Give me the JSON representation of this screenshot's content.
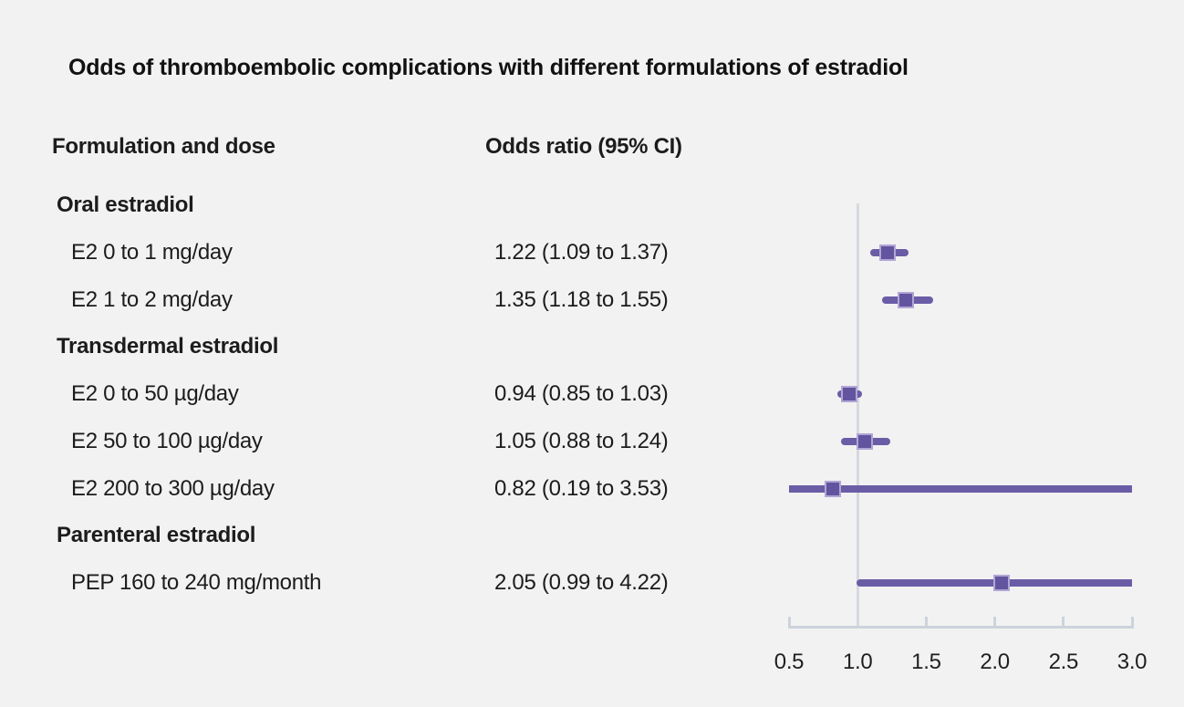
{
  "title": "Odds of thromboembolic complications with different formulations of estradiol",
  "columns": {
    "formulation": "Formulation and dose",
    "odds_ratio": "Odds ratio (95% CI)"
  },
  "chart_data": {
    "type": "forest",
    "title": "Odds of thromboembolic complications with different formulations of estradiol",
    "xlabel": "Odds ratio (95% CI)",
    "xlim": [
      0.5,
      3.0
    ],
    "grid": false,
    "reference_line": 1.0,
    "axis": {
      "tick_values": [
        0.5,
        1.0,
        1.5,
        2.0,
        2.5,
        3.0
      ],
      "tick_labels": [
        "0.5",
        "1.0",
        "1.5",
        "2.0",
        "2.5",
        "3.0"
      ]
    },
    "rows": [
      {
        "kind": "group",
        "label": "Oral estradiol"
      },
      {
        "kind": "item",
        "label": "E2 0 to 1 mg/day",
        "value_text": "1.22 (1.09 to 1.37)",
        "or": 1.22,
        "lo": 1.09,
        "hi": 1.37
      },
      {
        "kind": "item",
        "label": "E2 1 to 2 mg/day",
        "value_text": "1.35 (1.18 to 1.55)",
        "or": 1.35,
        "lo": 1.18,
        "hi": 1.55
      },
      {
        "kind": "group",
        "label": "Transdermal estradiol"
      },
      {
        "kind": "item",
        "label": "E2 0 to 50 µg/day",
        "value_text": "0.94 (0.85 to 1.03)",
        "or": 0.94,
        "lo": 0.85,
        "hi": 1.03
      },
      {
        "kind": "item",
        "label": "E2 50 to 100 µg/day",
        "value_text": "1.05 (0.88 to 1.24)",
        "or": 1.05,
        "lo": 0.88,
        "hi": 1.24
      },
      {
        "kind": "item",
        "label": "E2 200 to 300 µg/day",
        "value_text": "0.82 (0.19 to 3.53)",
        "or": 0.82,
        "lo": 0.19,
        "hi": 3.53
      },
      {
        "kind": "group",
        "label": "Parenteral estradiol"
      },
      {
        "kind": "item",
        "label": "PEP 160 to 240 mg/month",
        "value_text": "2.05 (0.99 to 4.22)",
        "or": 2.05,
        "lo": 0.99,
        "hi": 4.22
      }
    ]
  },
  "colors": {
    "background": "#f2f2f2",
    "text": "#1c1c1c",
    "ci_line": "#6a5da6",
    "marker_fill": "#63549f",
    "marker_border": "#b1a6d5",
    "axis": "#cdd3dc",
    "reference_line": "#d5d9e1"
  }
}
